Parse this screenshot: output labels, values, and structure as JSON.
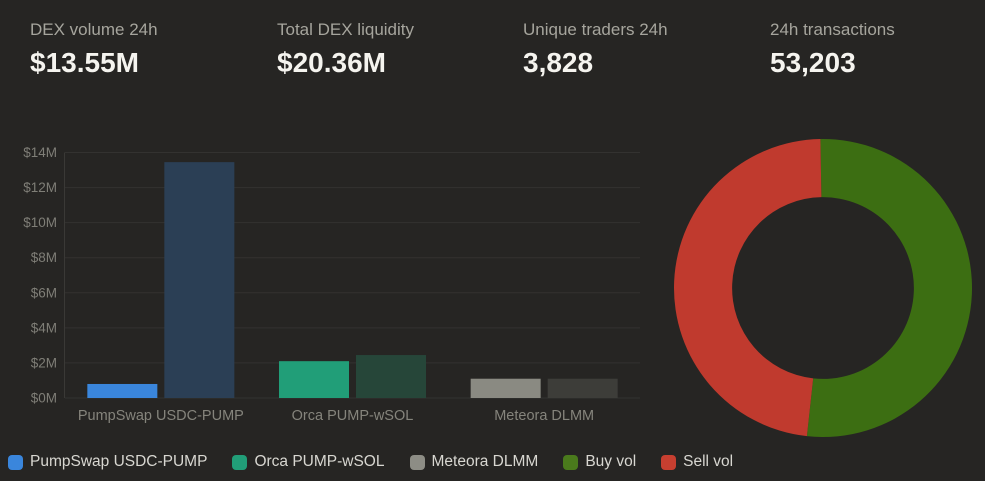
{
  "stats": [
    {
      "label": "DEX volume 24h",
      "value": "$13.55M"
    },
    {
      "label": "Total DEX liquidity",
      "value": "$20.36M"
    },
    {
      "label": "Unique traders 24h",
      "value": "3,828"
    },
    {
      "label": "24h transactions",
      "value": "53,203"
    }
  ],
  "chart_data": [
    {
      "type": "bar",
      "title": "",
      "categories": [
        "PumpSwap USDC-PUMP",
        "Orca PUMP-wSOL",
        "Meteora DLMM"
      ],
      "unit": "USD, millions",
      "groups": [
        {
          "label": "PumpSwap USDC-PUMP",
          "bars": [
            {
              "value": 0.8,
              "color": "#3a86dc"
            },
            {
              "value": 13.45,
              "color": "#2b3f55"
            }
          ]
        },
        {
          "label": "Orca PUMP-wSOL",
          "bars": [
            {
              "value": 2.1,
              "color": "#219e78"
            },
            {
              "value": 2.45,
              "color": "#264639"
            }
          ]
        },
        {
          "label": "Meteora DLMM",
          "bars": [
            {
              "value": 1.1,
              "color": "#8a8a82"
            },
            {
              "value": 1.1,
              "color": "#3d3d39"
            }
          ]
        }
      ],
      "y_ticks": [
        "$0M",
        "$2M",
        "$4M",
        "$6M",
        "$8M",
        "$10M",
        "$12M",
        "$14M"
      ],
      "ylim": [
        0,
        14
      ],
      "grid": true,
      "legend_position": "bottom"
    },
    {
      "type": "pie",
      "subtype": "donut",
      "slices": [
        {
          "label": "Buy vol",
          "value": 52,
          "color": "#3c6e12"
        },
        {
          "label": "Sell vol",
          "value": 48,
          "color": "#c03a2e"
        }
      ],
      "start_angle_deg": -1,
      "inner_radius_ratio": 0.61
    }
  ],
  "legend": {
    "items": [
      {
        "label": "PumpSwap USDC-PUMP",
        "color": "#3a86dc"
      },
      {
        "label": "Orca PUMP-wSOL",
        "color": "#219e78"
      },
      {
        "label": "Meteora DLMM",
        "color": "#8d8d85"
      },
      {
        "label": "Buy vol",
        "color": "#4a7a1c"
      },
      {
        "label": "Sell vol",
        "color": "#c73f30"
      }
    ]
  },
  "colors": {
    "background": "#262523",
    "stat_label": "#a6a59d",
    "stat_value": "#f5f4ef",
    "axis_text": "#7f7e77",
    "category_text": "#85847c",
    "gridline": "#333230",
    "axis_line": "#3a3936",
    "legend_text": "#d8d7d1"
  }
}
